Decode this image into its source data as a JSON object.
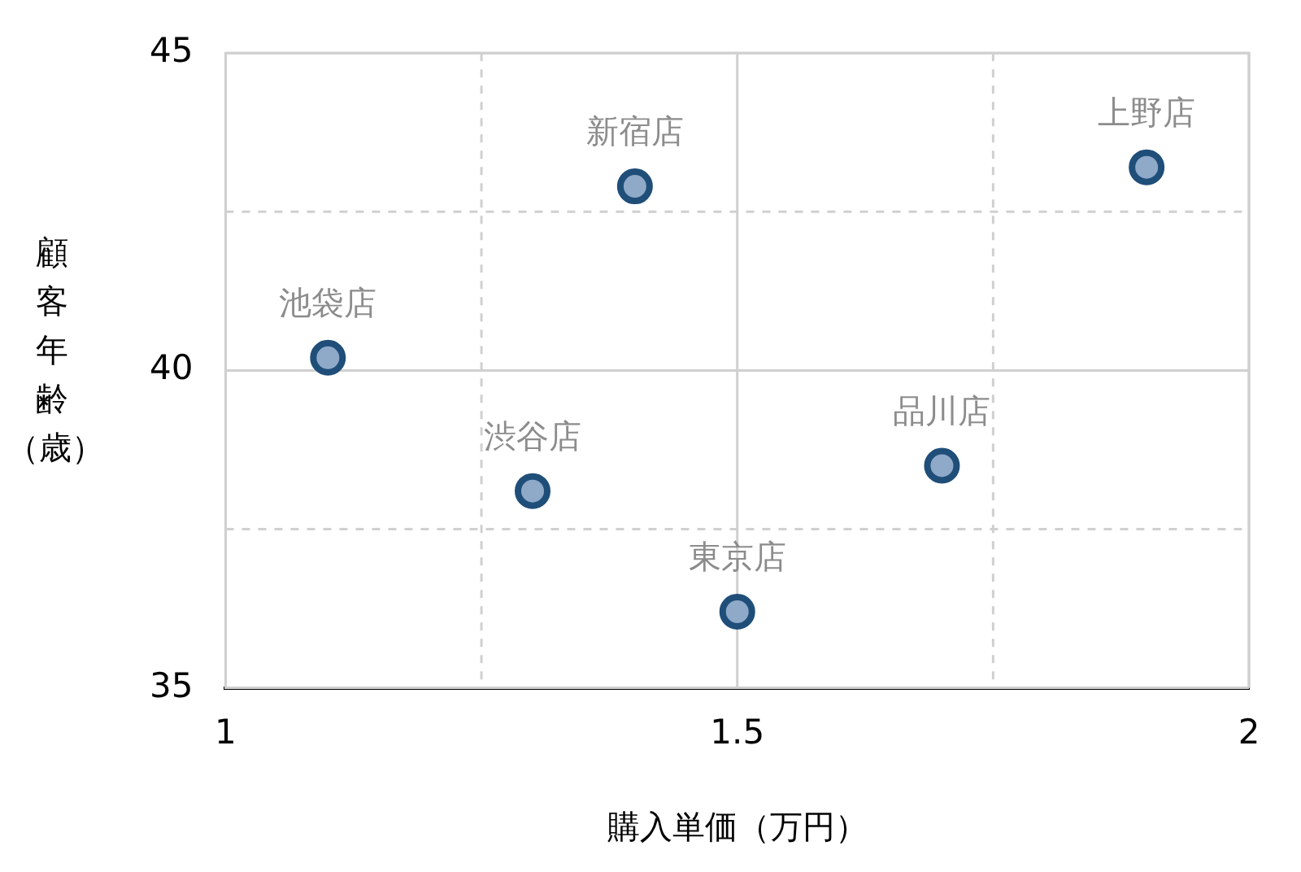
{
  "chart_data": {
    "type": "scatter",
    "xlabel": "購入単価（万円）",
    "ylabel": "顧客年齢（歳）",
    "series": [
      {
        "color": "#1f4e79",
        "x": [
          1.1,
          1.4,
          1.9,
          1.3,
          1.5,
          1.7
        ],
        "values": [
          40.2,
          42.9,
          43.2,
          38.1,
          36.2,
          38.5
        ]
      }
    ],
    "xlim": [
      1,
      2
    ],
    "xticks": [
      1,
      {
        "value": 1.25,
        "label": null
      },
      1.5,
      {
        "value": 1.75,
        "label": null
      },
      2
    ],
    "ylim": [
      35,
      45
    ],
    "yticks": [
      35,
      {
        "value": 37.5,
        "label": null
      },
      40,
      {
        "value": 42.5,
        "label": null
      },
      45
    ],
    "grid": true,
    "marker": "circle",
    "legend": false,
    "annotations": [
      {
        "text": "池袋店",
        "x": 1.1,
        "y": 40.2
      },
      {
        "text": "新宿店",
        "x": 1.4,
        "y": 42.9
      },
      {
        "text": "上野店",
        "x": 1.9,
        "y": 43.2
      },
      {
        "text": "渋谷店",
        "x": 1.3,
        "y": 38.1
      },
      {
        "text": "東京店",
        "x": 1.5,
        "y": 36.2
      },
      {
        "text": "品川店",
        "x": 1.7,
        "y": 38.5
      }
    ]
  }
}
